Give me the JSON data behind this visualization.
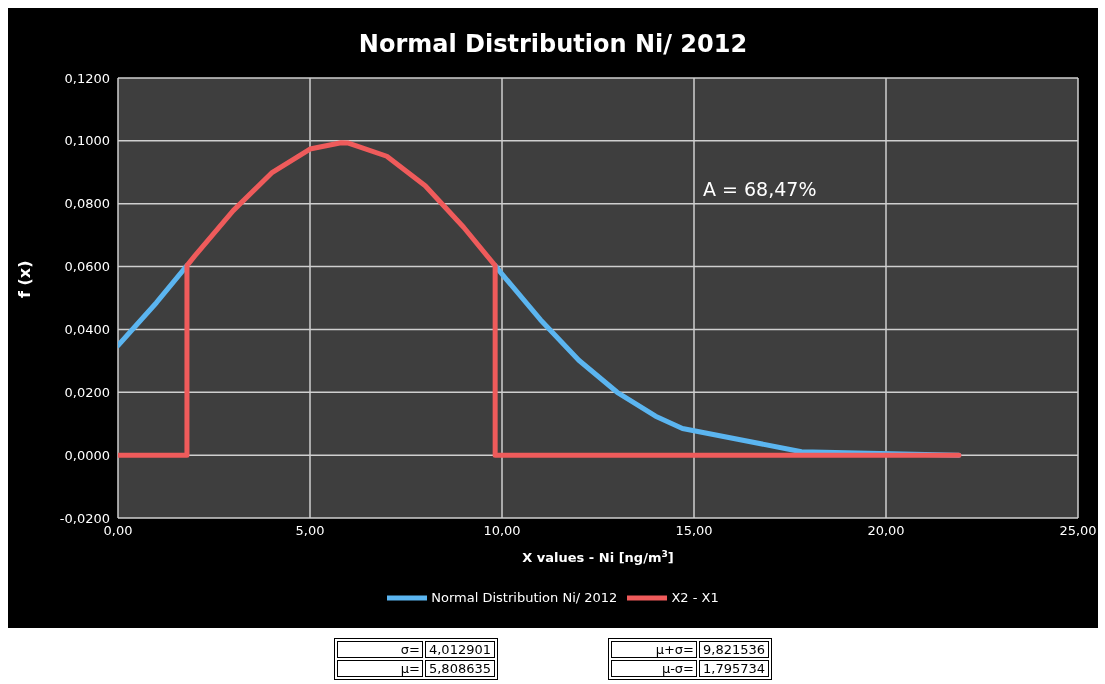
{
  "chart_data": {
    "type": "line",
    "title": "Normal Distribution Ni/ 2012",
    "xlabel": "X values - Ni [ng/m$^{3}$]",
    "ylabel": "f (x)",
    "series": [
      {
        "name": "Normal Distribution Ni/ 2012",
        "color": "#5bb5f0",
        "x": [
          0,
          1,
          1.7957,
          2,
          3,
          4,
          5,
          5.8086,
          6,
          7,
          8,
          9,
          9.8215,
          10,
          11,
          12,
          13,
          14,
          14.7,
          17.8,
          21.9
        ],
        "values": [
          0.0349,
          0.0485,
          0.0603,
          null,
          null,
          null,
          null,
          null,
          null,
          null,
          null,
          null,
          0.0603,
          0.0576,
          0.0431,
          0.0302,
          0.02,
          0.0124,
          0.0085,
          0.0011,
          0.0
        ]
      },
      {
        "name": "X2 - X1",
        "color": "#ef5b5b",
        "x": [
          0,
          1.7957,
          1.7957,
          2,
          3,
          4,
          5,
          5.8086,
          6,
          7,
          8,
          9,
          9.8215,
          9.8215,
          21.9
        ],
        "values": [
          0,
          0,
          0.0603,
          0.0634,
          0.0778,
          0.0898,
          0.0974,
          0.0994,
          0.0993,
          0.0951,
          0.0857,
          0.0725,
          0.0603,
          0,
          0
        ]
      }
    ],
    "xlim": [
      0,
      25
    ],
    "xticks": [
      {
        "value": 0,
        "label": "0,00"
      },
      {
        "value": 5,
        "label": "5,00"
      },
      {
        "value": 10,
        "label": "10,00"
      },
      {
        "value": 15,
        "label": "15,00"
      },
      {
        "value": 20,
        "label": "20,00"
      },
      {
        "value": 25,
        "label": "25,00"
      }
    ],
    "ylim": [
      -0.02,
      0.12
    ],
    "yticks": [
      {
        "value": -0.02,
        "label": "-0,0200"
      },
      {
        "value": 0,
        "label": "0,0000"
      },
      {
        "value": 0.02,
        "label": "0,0200"
      },
      {
        "value": 0.04,
        "label": "0,0400"
      },
      {
        "value": 0.06,
        "label": "0,0600"
      },
      {
        "value": 0.08,
        "label": "0,0800"
      },
      {
        "value": 0.1,
        "label": "0,1000"
      },
      {
        "value": 0.12,
        "label": "0,1200"
      }
    ],
    "grid": true,
    "legend": "bottom",
    "marker": "none",
    "line_style": "solid",
    "annotations": [
      "A = 68,47%",
      "σ=",
      "4,012901",
      "μ=",
      "5,808635",
      "μ+σ=",
      "9,821536",
      "μ-σ=",
      "1,795734"
    ]
  }
}
